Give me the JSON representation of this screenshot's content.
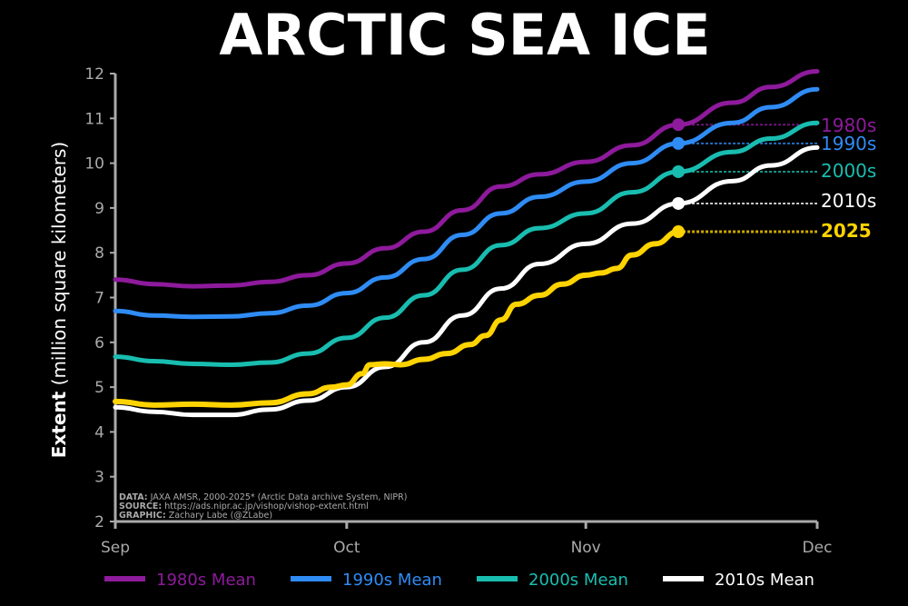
{
  "chart_data": {
    "type": "line",
    "title": "ARCTIC SEA ICE",
    "ylabel_bold": "Extent",
    "ylabel_rest": " (million square kilometers)",
    "xlabel": "",
    "ylim": [
      2,
      12
    ],
    "yticks": [
      2,
      3,
      4,
      5,
      6,
      7,
      8,
      9,
      10,
      11,
      12
    ],
    "x_unit": "day since Sep 1",
    "xlim": [
      0,
      91
    ],
    "xticks": [
      {
        "day": 0,
        "label": "Sep"
      },
      {
        "day": 30,
        "label": "Oct"
      },
      {
        "day": 61,
        "label": "Nov"
      },
      {
        "day": 91,
        "label": "Dec"
      }
    ],
    "grid": false,
    "legend_placement": "bottom",
    "credits": [
      {
        "key": "DATA:",
        "text": " JAXA AMSR, 2000-2025* (Arctic Data archive System, NIPR)"
      },
      {
        "key": "SOURCE:",
        "text": " https://ads.nipr.ac.jp/vishop/vishop-extent.html"
      },
      {
        "key": "GRAPHIC:",
        "text": " Zachary Labe (@ZLabe)"
      }
    ],
    "marker_day": 73,
    "series": [
      {
        "name": "1980s Mean",
        "label": "1980s",
        "color": "#8e1a9c",
        "bold": false,
        "x": [
          0,
          5,
          10,
          15,
          20,
          25,
          30,
          35,
          40,
          45,
          50,
          55,
          61,
          67,
          73,
          80,
          85,
          91
        ],
        "y": [
          7.4,
          7.3,
          7.25,
          7.27,
          7.35,
          7.5,
          7.76,
          8.1,
          8.47,
          8.95,
          9.48,
          9.75,
          10.03,
          10.4,
          10.86,
          11.35,
          11.7,
          12.05
        ]
      },
      {
        "name": "1990s Mean",
        "label": "1990s",
        "color": "#2f8cf5",
        "bold": false,
        "x": [
          0,
          5,
          10,
          15,
          20,
          25,
          30,
          35,
          40,
          45,
          50,
          55,
          61,
          67,
          73,
          80,
          85,
          91
        ],
        "y": [
          6.7,
          6.6,
          6.57,
          6.58,
          6.65,
          6.82,
          7.1,
          7.45,
          7.86,
          8.4,
          8.88,
          9.25,
          9.59,
          10.0,
          10.44,
          10.9,
          11.25,
          11.65
        ]
      },
      {
        "name": "2000s Mean",
        "label": "2000s",
        "color": "#19bdb0",
        "bold": false,
        "x": [
          0,
          5,
          10,
          15,
          20,
          25,
          30,
          35,
          40,
          45,
          50,
          55,
          61,
          67,
          73,
          80,
          85,
          91
        ],
        "y": [
          5.68,
          5.58,
          5.52,
          5.5,
          5.55,
          5.75,
          6.1,
          6.55,
          7.05,
          7.62,
          8.17,
          8.55,
          8.88,
          9.35,
          9.81,
          10.25,
          10.55,
          10.9
        ]
      },
      {
        "name": "2010s Mean",
        "label": "2010s",
        "color": "#ffffff",
        "bold": false,
        "x": [
          0,
          5,
          10,
          15,
          20,
          25,
          30,
          35,
          40,
          45,
          50,
          55,
          61,
          67,
          73,
          80,
          85,
          91
        ],
        "y": [
          4.55,
          4.45,
          4.38,
          4.38,
          4.5,
          4.7,
          5.0,
          5.45,
          6.0,
          6.6,
          7.2,
          7.75,
          8.2,
          8.65,
          9.1,
          9.6,
          9.95,
          10.35
        ]
      },
      {
        "name": "",
        "label": "2025",
        "color": "#ffd300",
        "bold": true,
        "x": [
          0,
          5,
          10,
          15,
          20,
          25,
          28,
          30,
          32,
          33,
          35,
          37,
          40,
          43,
          46,
          48,
          50,
          52,
          55,
          58,
          61,
          63,
          65,
          67,
          70,
          73
        ],
        "y": [
          4.68,
          4.6,
          4.62,
          4.6,
          4.65,
          4.85,
          5.0,
          5.05,
          5.3,
          5.5,
          5.52,
          5.5,
          5.62,
          5.75,
          5.95,
          6.15,
          6.5,
          6.85,
          7.05,
          7.3,
          7.5,
          7.55,
          7.65,
          7.95,
          8.2,
          8.47
        ]
      }
    ]
  }
}
